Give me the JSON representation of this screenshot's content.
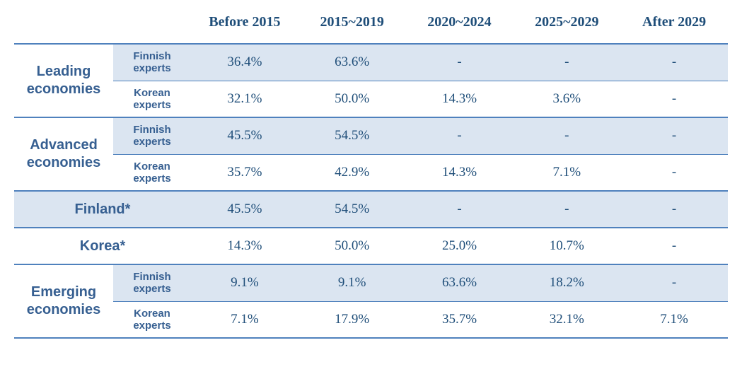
{
  "periods": [
    "Before 2015",
    "2015~2019",
    "2020~2024",
    "2025~2029",
    "After 2029"
  ],
  "subLabels": {
    "finnish": "Finnish experts",
    "korean": "Korean experts"
  },
  "groups": [
    {
      "name": "Leading economies",
      "rows": [
        {
          "sub": "finnish",
          "vals": [
            "36.4%",
            "63.6%",
            "-",
            "-",
            "-"
          ]
        },
        {
          "sub": "korean",
          "vals": [
            "32.1%",
            "50.0%",
            "14.3%",
            "3.6%",
            "-"
          ]
        }
      ]
    },
    {
      "name": "Advanced economies",
      "rows": [
        {
          "sub": "finnish",
          "vals": [
            "45.5%",
            "54.5%",
            "-",
            "-",
            "-"
          ]
        },
        {
          "sub": "korean",
          "vals": [
            "35.7%",
            "42.9%",
            "14.3%",
            "7.1%",
            "-"
          ]
        }
      ]
    },
    {
      "name": "Finland*",
      "single": true,
      "rows": [
        {
          "vals": [
            "45.5%",
            "54.5%",
            "-",
            "-",
            "-"
          ]
        }
      ]
    },
    {
      "name": "Korea*",
      "single": true,
      "rows": [
        {
          "vals": [
            "14.3%",
            "50.0%",
            "25.0%",
            "10.7%",
            "-"
          ]
        }
      ]
    },
    {
      "name": "Emerging economies",
      "rows": [
        {
          "sub": "finnish",
          "vals": [
            "9.1%",
            "9.1%",
            "63.6%",
            "18.2%",
            "-"
          ]
        },
        {
          "sub": "korean",
          "vals": [
            "7.1%",
            "17.9%",
            "35.7%",
            "32.1%",
            "7.1%"
          ]
        }
      ]
    }
  ],
  "style": {
    "accent": "#4f81bd",
    "shadeBg": "#dbe5f1",
    "headerText": "#1f4e79",
    "labelText": "#365f91",
    "headerFont": "Times New Roman",
    "labelFont": "Arial",
    "valueFont": "Times New Roman",
    "headerFontSize": 20,
    "groupFontSize": 20,
    "subFontSize": 15,
    "valueFontSize": 19
  }
}
